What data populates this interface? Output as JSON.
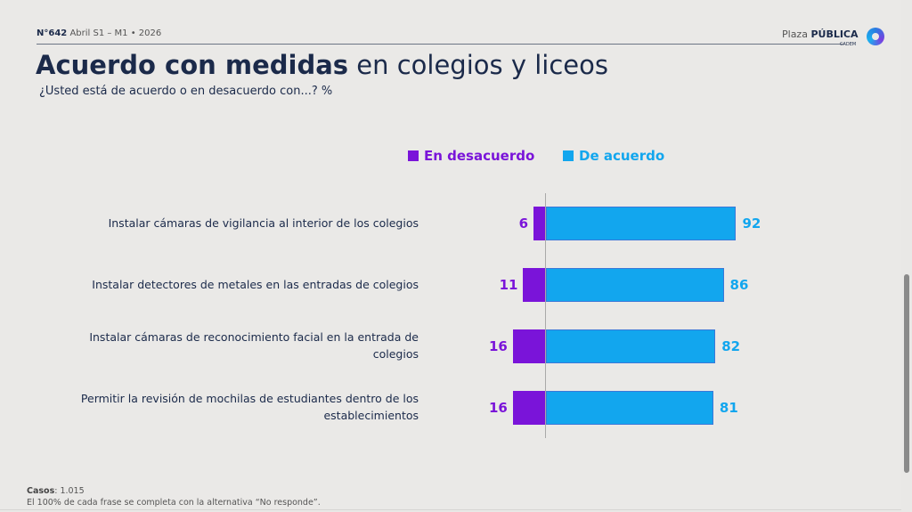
{
  "header": {
    "issue_number": "N°642",
    "issue_date": "Abril S1 – M1 • 2026",
    "logo_light": "Plaza",
    "logo_bold": "PÚBLICA",
    "logo_sub": "CADEM"
  },
  "title": {
    "bold": "Acuerdo con medidas",
    "light": "en colegios y liceos"
  },
  "subtitle": "¿Usted está de acuerdo o en desacuerdo con...? %",
  "colors": {
    "disagree": "#7a14d9",
    "agree": "#12a6ee",
    "agree_border": "#3a78d8"
  },
  "chart_data": {
    "type": "bar",
    "orientation": "horizontal-diverging",
    "categories": [
      "Instalar cámaras de vigilancia al interior de los colegios",
      "Instalar detectores de metales en las entradas de colegios",
      "Instalar cámaras de reconocimiento facial en la entrada de colegios",
      "Permitir la revisión de mochilas de estudiantes dentro de los establecimientos"
    ],
    "series": [
      {
        "name": "En desacuerdo",
        "values": [
          6,
          11,
          16,
          16
        ]
      },
      {
        "name": "De acuerdo",
        "values": [
          92,
          86,
          82,
          81
        ]
      }
    ],
    "legend": "top",
    "grid": false
  },
  "footer": {
    "cases_label": "Casos",
    "cases_value": ": 1.015",
    "note": "El 100% de cada frase se completa con la alternativa “No responde”."
  }
}
